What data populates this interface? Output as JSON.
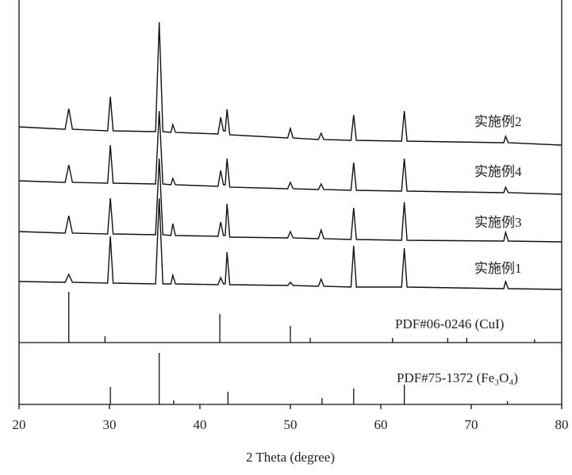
{
  "chart_data": [
    {
      "type": "line",
      "color": "#111111",
      "xlim": [
        20,
        80
      ],
      "ylim": [
        0,
        432
      ],
      "x": [
        20,
        25.1,
        25.5,
        25.9,
        29.8,
        30.1,
        30.4,
        35.1,
        35.5,
        35.9,
        36.8,
        37.0,
        37.3,
        42.0,
        42.3,
        42.6,
        42.8,
        43.0,
        43.3,
        49.7,
        50.0,
        50.3,
        53.1,
        53.4,
        53.7,
        56.7,
        57.0,
        57.3,
        62.3,
        62.6,
        62.9,
        73.6,
        73.8,
        74.1,
        80
      ],
      "series": [
        {
          "name": "实施例2",
          "values": [
            272,
            269,
            295,
            269,
            267,
            310,
            267,
            266,
            404,
            266,
            265,
            275,
            265,
            263,
            284,
            267,
            267,
            294,
            262,
            258,
            270,
            258,
            256,
            264,
            256,
            255,
            287,
            255,
            254,
            292,
            254,
            252,
            260,
            252,
            249
          ]
        },
        {
          "name": "实施例4",
          "values": [
            204,
            202,
            224,
            202,
            201,
            249,
            201,
            200,
            292,
            200,
            199,
            207,
            199,
            197,
            217,
            199,
            199,
            232,
            196,
            194,
            202,
            194,
            193,
            200,
            193,
            192,
            227,
            192,
            191,
            232,
            191,
            189,
            196,
            189,
            187
          ]
        },
        {
          "name": "实施例3",
          "values": [
            140,
            138,
            160,
            138,
            137,
            182,
            137,
            136,
            232,
            136,
            135,
            150,
            135,
            134,
            152,
            135,
            135,
            175,
            133,
            132,
            140,
            132,
            131,
            142,
            131,
            130,
            170,
            130,
            129,
            177,
            129,
            128,
            139,
            128,
            127
          ]
        },
        {
          "name": "实施例1",
          "values": [
            77,
            76,
            86,
            76,
            75,
            134,
            75,
            74,
            182,
            74,
            74,
            85,
            74,
            73,
            82,
            74,
            74,
            114,
            73,
            72,
            76,
            72,
            71,
            80,
            71,
            70,
            122,
            70,
            70,
            119,
            70,
            68,
            77,
            68,
            67
          ]
        }
      ],
      "reference": {
        "label": "PDF#06-0246 (CuI)",
        "x": [
          25.5,
          29.5,
          42.2,
          50.0,
          52.2,
          61.3,
          67.4,
          69.5,
          77.0
        ],
        "values": [
          64,
          8,
          36,
          21,
          6,
          6,
          6,
          6,
          4
        ]
      }
    },
    {
      "type": "stick",
      "color": "#111111",
      "xlim": [
        20,
        80
      ],
      "ylim": [
        0,
        78
      ],
      "xticks": [
        20,
        30,
        40,
        50,
        60,
        70,
        80
      ],
      "xlabel": "2 Theta (degree)",
      "label": "PDF#75-1372 (Fe₃O₄)",
      "x": [
        30.1,
        35.5,
        37.1,
        43.1,
        53.5,
        57.0,
        62.6,
        74.0
      ],
      "values": [
        22,
        65,
        5,
        16,
        8,
        20,
        25,
        4
      ]
    }
  ]
}
